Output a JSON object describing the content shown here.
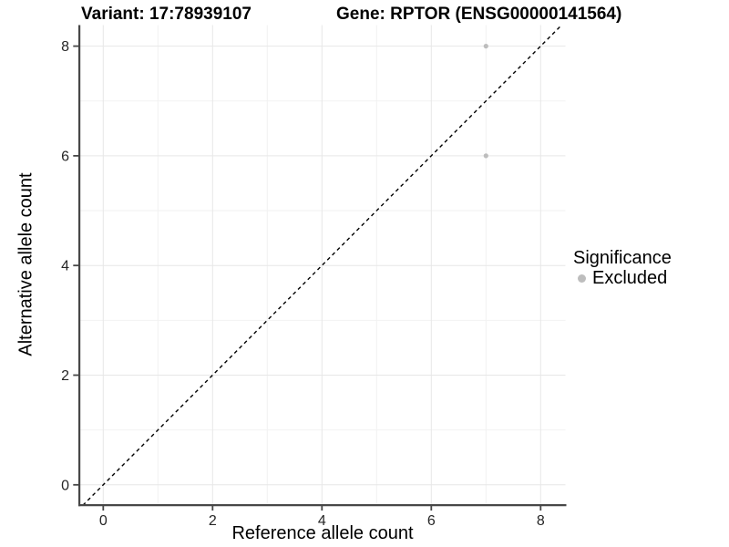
{
  "chart_data": {
    "type": "scatter",
    "title_left": "Variant: 17:78939107",
    "title_right": "Gene: RPTOR (ENSG00000141564)",
    "xlabel": "Reference allele count",
    "ylabel": "Alternative allele count",
    "xlim": [
      -0.43,
      8.45
    ],
    "ylim": [
      -0.36,
      8.38
    ],
    "x_major_ticks": [
      0,
      2,
      4,
      6,
      8
    ],
    "y_major_ticks": [
      0,
      2,
      4,
      6,
      8
    ],
    "x_minor_gridlines": [
      1,
      3,
      5,
      7
    ],
    "y_minor_gridlines": [
      1,
      3,
      5,
      7
    ],
    "grid": "major+minor",
    "series": [
      {
        "name": "Excluded",
        "color": "#bdbdbd",
        "points": [
          {
            "x": 7,
            "y": 8
          },
          {
            "x": 7,
            "y": 6
          }
        ]
      }
    ],
    "reference_line": {
      "type": "abline",
      "slope": 1,
      "intercept": 0,
      "linetype": "dashed",
      "color": "#000000"
    },
    "legend": {
      "title": "Significance",
      "position": "right",
      "items": [
        {
          "label": "Excluded",
          "color": "#bdbdbd"
        }
      ]
    },
    "style": {
      "point_color": "#bdbdbd",
      "grid_major_color": "#e7e7e7",
      "grid_minor_color": "#f2f2f2",
      "axis_line_color": "#474747",
      "tick_text_color": "#262626",
      "background": "#ffffff"
    }
  }
}
